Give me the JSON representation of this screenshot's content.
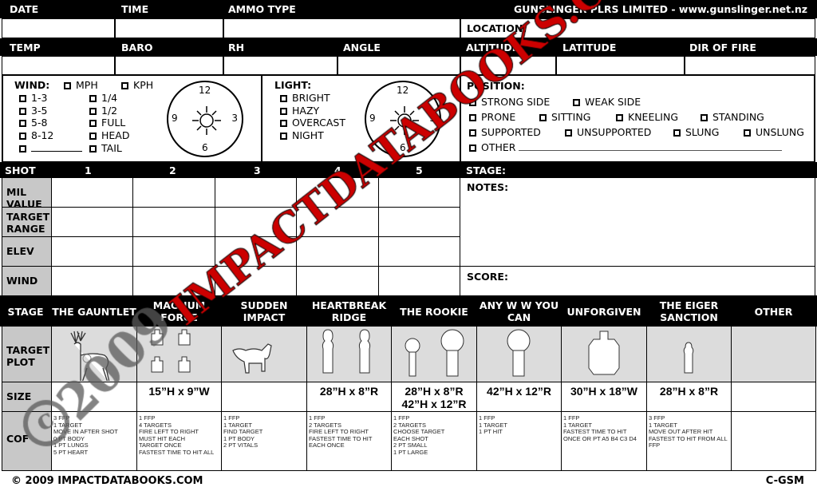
{
  "header": {
    "date": "DATE",
    "time": "TIME",
    "ammo_type": "AMMO TYPE",
    "company": "GUNSLINGER PLRS LIMITED - www.gunslinger.net.nz",
    "location": "LOCATION:"
  },
  "conditions": {
    "temp": "TEMP",
    "baro": "BARO",
    "rh": "RH",
    "angle": "ANGLE",
    "altitude": "ALTITUDE",
    "latitude": "LATITUDE",
    "dir_of_fire": "DIR OF FIRE"
  },
  "wind": {
    "label": "WIND:",
    "units": [
      "MPH",
      "KPH"
    ],
    "speeds": [
      "1-3",
      "3-5",
      "5-8",
      "8-12",
      ""
    ],
    "values": [
      "1/4",
      "1/2",
      "FULL",
      "HEAD",
      "TAIL"
    ],
    "clock": [
      "12",
      "3",
      "6",
      "9"
    ]
  },
  "light": {
    "label": "LIGHT:",
    "options": [
      "BRIGHT",
      "HAZY",
      "OVERCAST",
      "NIGHT"
    ],
    "clock": [
      "12",
      "3",
      "6",
      "9"
    ]
  },
  "position": {
    "label": "POSITION:",
    "row1": [
      "STRONG SIDE",
      "WEAK SIDE"
    ],
    "row2": [
      "PRONE",
      "SITTING",
      "KNEELING",
      "STANDING"
    ],
    "row3": [
      "SUPPORTED",
      "UNSUPPORTED",
      "SLUNG",
      "UNSLUNG"
    ],
    "row4": [
      "OTHER"
    ]
  },
  "shots": {
    "label": "SHOT",
    "columns": [
      "1",
      "2",
      "3",
      "4",
      "5"
    ],
    "rows": [
      "MIL VALUE",
      "TARGET RANGE",
      "ELEV",
      "WIND"
    ]
  },
  "right": {
    "stage": "STAGE:",
    "notes": "NOTES:",
    "score": "SCORE:"
  },
  "stages": {
    "label": "STAGE",
    "target_plot": "TARGET PLOT",
    "size": "SIZE",
    "cof": "COF",
    "items": [
      {
        "name": "THE GAUNTLET",
        "size": "",
        "cof": "3 FFP\n1 TARGET\nMOVE IN AFTER SHOT\n0 PT BODY\n1 PT LUNGS\n5 PT HEART",
        "target": "deer"
      },
      {
        "name": "MAGNUM FORCE",
        "size": "15”H x 9”W",
        "cof": "1 FFP\n4 TARGETS\nFIRE LEFT TO RIGHT\nMUST HIT EACH\nTARGET ONCE\nFASTEST TIME TO HIT ALL",
        "target": "four-silhouettes"
      },
      {
        "name": "SUDDEN IMPACT",
        "size": "",
        "cof": "1 FFP\n1 TARGET\nFIND TARGET\n1 PT BODY\n2 PT VITALS",
        "target": "wolf"
      },
      {
        "name": "HEARTBREAK RIDGE",
        "size": "28”H x 8”R",
        "cof": "1 FFP\n2 TARGETS\nFIRE LEFT TO RIGHT\nFASTEST TIME TO HIT\nEACH ONCE",
        "target": "two-figures"
      },
      {
        "name": "THE ROOKIE",
        "size": "28”H x 8”R\n42”H x 12”R",
        "cof": "1 FFP\n2 TARGETS\nCHOOSE TARGET\nEACH SHOT\n2 PT SMALL\n1 PT LARGE",
        "target": "two-paddles"
      },
      {
        "name": "ANY W W YOU CAN",
        "size": "42”H x 12”R",
        "cof": "1 FFP\n1 TARGET\n1 PT HIT",
        "target": "paddle"
      },
      {
        "name": "UNFORGIVEN",
        "size": "30”H x 18”W",
        "cof": "1 FFP\n1 TARGET\nFASTEST TIME TO HIT\nONCE OR PT A5 B4 C3 D4",
        "target": "ipsc"
      },
      {
        "name": "THE EIGER SANCTION",
        "size": "28”H x 8”R",
        "cof": "3 FFP\n1 TARGET\nMOVE OUT AFTER HIT\nFASTEST TO HIT FROM ALL\nFFP",
        "target": "small-figure"
      },
      {
        "name": "OTHER",
        "size": "",
        "cof": "",
        "target": ""
      }
    ]
  },
  "footer": {
    "copyright": "© 2009 IMPACTDATABOOKS.COM",
    "code": "C-GSM"
  },
  "watermark": {
    "text": "IMPACTDATABOOKS.COM",
    "year": "2009",
    "symbol": "©",
    "color": "#cc0000"
  }
}
